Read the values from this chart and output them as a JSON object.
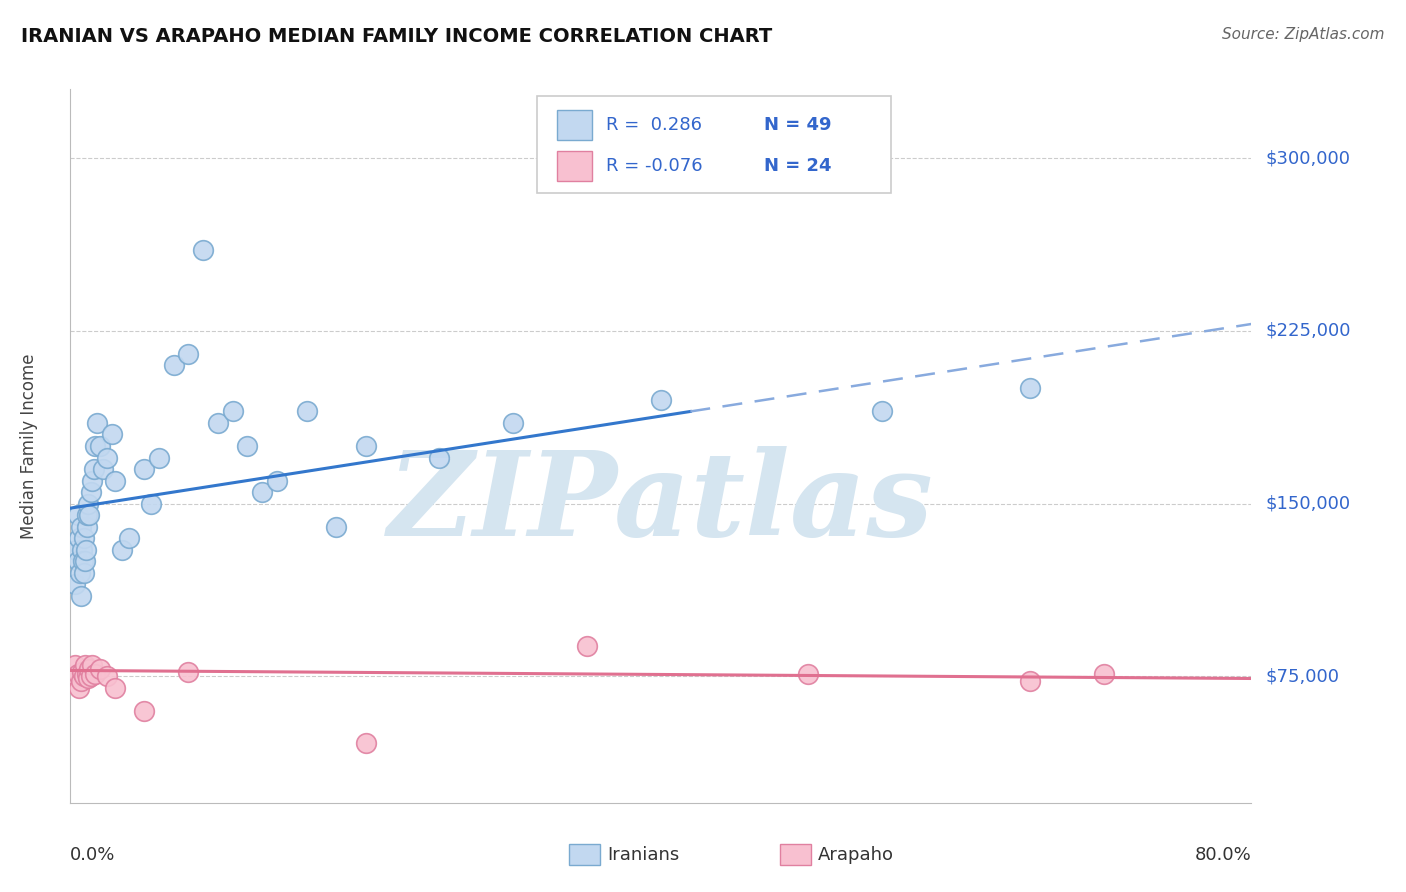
{
  "title": "IRANIAN VS ARAPAHO MEDIAN FAMILY INCOME CORRELATION CHART",
  "source": "Source: ZipAtlas.com",
  "ylabel": "Median Family Income",
  "x_min": 0.0,
  "x_max": 80.0,
  "y_min": 20000,
  "y_max": 330000,
  "y_ticks": [
    75000,
    150000,
    225000,
    300000
  ],
  "y_tick_labels": [
    "$75,000",
    "$150,000",
    "$225,000",
    "$300,000"
  ],
  "iranians_R": 0.286,
  "iranians_N": 49,
  "arapaho_R": -0.076,
  "arapaho_N": 24,
  "iranians_color": "#c2d8f0",
  "iranians_edge_color": "#7aaad0",
  "arapaho_color": "#f8c0d0",
  "arapaho_edge_color": "#e080a0",
  "trend_iranian_solid_color": "#3377cc",
  "trend_iranian_dash_color": "#88aade",
  "trend_arapaho_color": "#e07090",
  "watermark_color": "#d5e5f0",
  "legend_text_color": "#3366cc",
  "iranians_x": [
    0.3,
    0.4,
    0.5,
    0.55,
    0.6,
    0.65,
    0.7,
    0.75,
    0.8,
    0.85,
    0.9,
    0.95,
    1.0,
    1.05,
    1.1,
    1.15,
    1.2,
    1.3,
    1.4,
    1.5,
    1.6,
    1.7,
    1.8,
    2.0,
    2.2,
    2.5,
    2.8,
    3.0,
    3.5,
    4.0,
    5.0,
    5.5,
    6.0,
    7.0,
    8.0,
    9.0,
    10.0,
    11.0,
    12.0,
    13.0,
    14.0,
    16.0,
    18.0,
    20.0,
    25.0,
    30.0,
    40.0,
    55.0,
    65.0
  ],
  "iranians_y": [
    115000,
    130000,
    145000,
    125000,
    135000,
    120000,
    140000,
    110000,
    130000,
    125000,
    135000,
    120000,
    125000,
    130000,
    140000,
    145000,
    150000,
    145000,
    155000,
    160000,
    165000,
    175000,
    185000,
    175000,
    165000,
    170000,
    180000,
    160000,
    130000,
    135000,
    165000,
    150000,
    170000,
    210000,
    215000,
    260000,
    185000,
    190000,
    175000,
    155000,
    160000,
    190000,
    140000,
    175000,
    170000,
    185000,
    195000,
    190000,
    200000
  ],
  "arapaho_x": [
    0.3,
    0.4,
    0.5,
    0.6,
    0.7,
    0.8,
    0.9,
    1.0,
    1.1,
    1.2,
    1.3,
    1.4,
    1.5,
    1.7,
    2.0,
    2.5,
    3.0,
    5.0,
    8.0,
    20.0,
    35.0,
    50.0,
    65.0,
    70.0
  ],
  "arapaho_y": [
    80000,
    75000,
    76000,
    70000,
    73000,
    77000,
    75000,
    80000,
    76000,
    74000,
    78000,
    75000,
    80000,
    76000,
    78000,
    75000,
    70000,
    60000,
    77000,
    46000,
    88000,
    76000,
    73000,
    76000
  ],
  "trend_i_x0": 0.0,
  "trend_i_y0": 148000,
  "trend_i_x1": 80.0,
  "trend_i_y1": 228000,
  "trend_solid_end": 42.0,
  "trend_a_x0": 0.0,
  "trend_a_y0": 77500,
  "trend_a_x1": 80.0,
  "trend_a_y1": 74000
}
